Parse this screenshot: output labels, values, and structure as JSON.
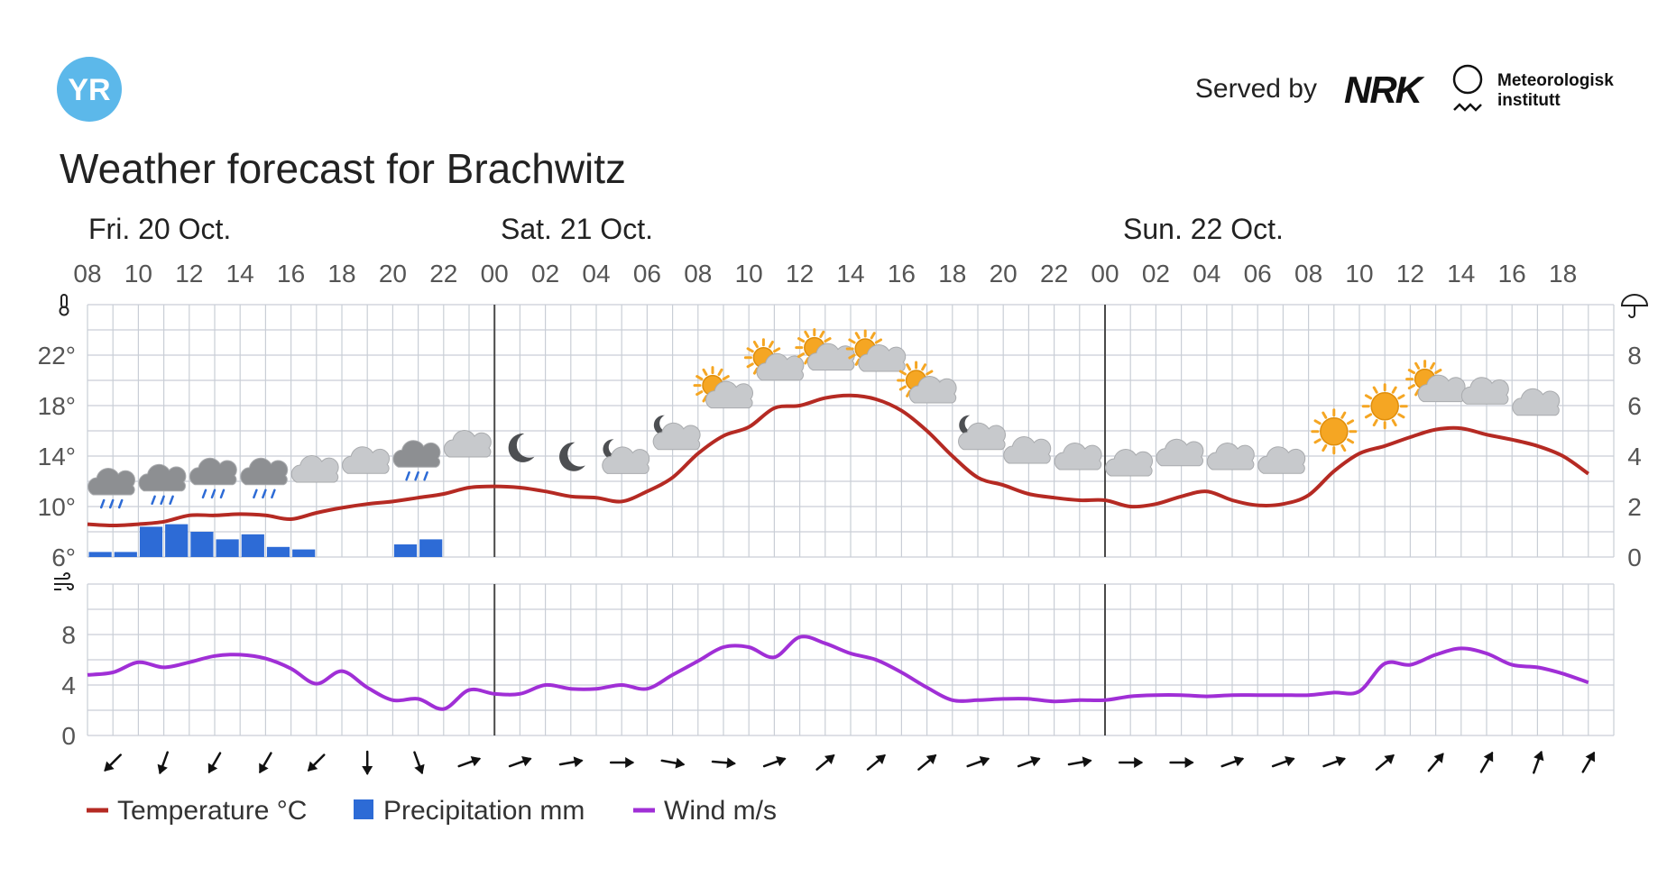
{
  "header": {
    "logo_text": "YR",
    "served_by_label": "Served by",
    "nrk_logo_text": "NRK",
    "met_line1": "Meteorologisk",
    "met_line2": "institutt",
    "title": "Weather forecast for Brachwitz"
  },
  "colors": {
    "temperature": "#b52a23",
    "precipitation": "#2d6bd6",
    "wind": "#a02fd6",
    "grid": "#c9ced6",
    "day_divider": "#4a4a4a",
    "yr_blue": "#5cb8ea",
    "cloud_gray": "#c7c9cc",
    "cloud_dark": "#8d8f92",
    "sun": "#f5a623",
    "moon": "#4d4f52"
  },
  "chart_data": [
    {
      "type": "line",
      "title": "",
      "days": [
        "Fri. 20 Oct.",
        "Sat. 21 Oct.",
        "Sun. 22 Oct."
      ],
      "x_tick_labels": [
        "08",
        "10",
        "12",
        "14",
        "16",
        "18",
        "20",
        "22",
        "00",
        "02",
        "04",
        "06",
        "08",
        "10",
        "12",
        "14",
        "16",
        "18",
        "20",
        "22",
        "00",
        "02",
        "04",
        "06",
        "08",
        "10",
        "12",
        "14",
        "16",
        "18"
      ],
      "temperature_axis": {
        "ticks": [
          "6°",
          "10°",
          "14°",
          "18°",
          "22°"
        ],
        "range": [
          6,
          26
        ],
        "icon": "thermometer-icon"
      },
      "precip_axis": {
        "ticks": [
          "0",
          "2",
          "4",
          "6",
          "8"
        ],
        "range": [
          0,
          10
        ],
        "icon": "umbrella-icon"
      },
      "series": [
        {
          "name": "Temperature °C",
          "values": [
            8.6,
            8.5,
            8.6,
            8.8,
            9.3,
            9.3,
            9.4,
            9.3,
            9.0,
            9.5,
            9.9,
            10.2,
            10.4,
            10.7,
            11.0,
            11.5,
            11.6,
            11.5,
            11.2,
            10.8,
            10.7,
            10.4,
            11.2,
            12.3,
            14.2,
            15.6,
            16.3,
            17.8,
            18.0,
            18.6,
            18.8,
            18.5,
            17.6,
            16.0,
            14.0,
            12.3,
            11.7,
            11.0,
            10.7,
            10.5,
            10.5,
            10.0,
            10.2,
            10.8,
            11.2,
            10.5,
            10.1,
            10.2,
            10.9,
            12.8,
            14.2,
            14.8,
            15.5,
            16.1,
            16.2,
            15.7,
            15.3,
            14.8,
            14.0,
            12.6
          ]
        },
        {
          "name": "Precipitation mm",
          "type": "bar",
          "values": [
            0.2,
            0.2,
            1.2,
            1.3,
            1.0,
            0.7,
            0.9,
            0.4,
            0.3,
            0,
            0,
            0,
            0.5,
            0.7,
            0,
            0,
            0,
            0,
            0,
            0,
            0,
            0,
            0,
            0,
            0,
            0,
            0,
            0,
            0,
            0,
            0,
            0,
            0,
            0,
            0,
            0,
            0,
            0,
            0,
            0,
            0,
            0,
            0,
            0,
            0,
            0,
            0,
            0,
            0,
            0,
            0,
            0,
            0,
            0,
            0,
            0,
            0,
            0,
            0,
            0
          ]
        }
      ],
      "weather_icons": [
        "rain",
        "rain",
        "rain",
        "rain",
        "cloudy",
        "cloudy",
        "rain",
        "cloudy",
        "moon",
        "moon",
        "partly-cloudy-night",
        "partly-cloudy-night",
        "partly-sunny",
        "partly-sunny",
        "partly-sunny",
        "partly-sunny",
        "partly-sunny",
        "partly-cloudy-night",
        "cloudy",
        "cloudy",
        "cloudy",
        "cloudy",
        "cloudy",
        "cloudy",
        "sun",
        "sun",
        "partly-sunny",
        "cloudy",
        "cloudy"
      ],
      "legend": "bottom-left",
      "grid": true
    },
    {
      "type": "line",
      "title": "",
      "y_axis": {
        "ticks": [
          "0",
          "4",
          "8"
        ],
        "range": [
          0,
          12
        ],
        "icon": "wind-icon"
      },
      "series": [
        {
          "name": "Wind m/s",
          "values": [
            4.8,
            5.0,
            5.8,
            5.4,
            5.8,
            6.3,
            6.4,
            6.1,
            5.3,
            4.1,
            5.1,
            3.8,
            2.8,
            2.9,
            2.1,
            3.6,
            3.3,
            3.3,
            4.0,
            3.7,
            3.7,
            4.0,
            3.7,
            4.8,
            5.9,
            7.0,
            7.0,
            6.2,
            7.8,
            7.3,
            6.5,
            6.0,
            5.0,
            3.8,
            2.8,
            2.8,
            2.9,
            2.9,
            2.7,
            2.8,
            2.8,
            3.1,
            3.2,
            3.2,
            3.1,
            3.2,
            3.2,
            3.2,
            3.2,
            3.4,
            3.5,
            5.7,
            5.6,
            6.4,
            6.9,
            6.5,
            5.6,
            5.4,
            4.9,
            4.2
          ]
        }
      ],
      "wind_directions_deg": [
        45,
        70,
        60,
        60,
        45,
        90,
        110,
        200,
        200,
        190,
        180,
        170,
        175,
        200,
        220,
        220,
        220,
        200,
        200,
        190,
        180,
        180,
        200,
        200,
        200,
        220,
        230,
        240,
        250,
        240
      ]
    }
  ],
  "legend": {
    "temperature_label": "Temperature °C",
    "precipitation_label": "Precipitation mm",
    "wind_label": "Wind m/s"
  }
}
